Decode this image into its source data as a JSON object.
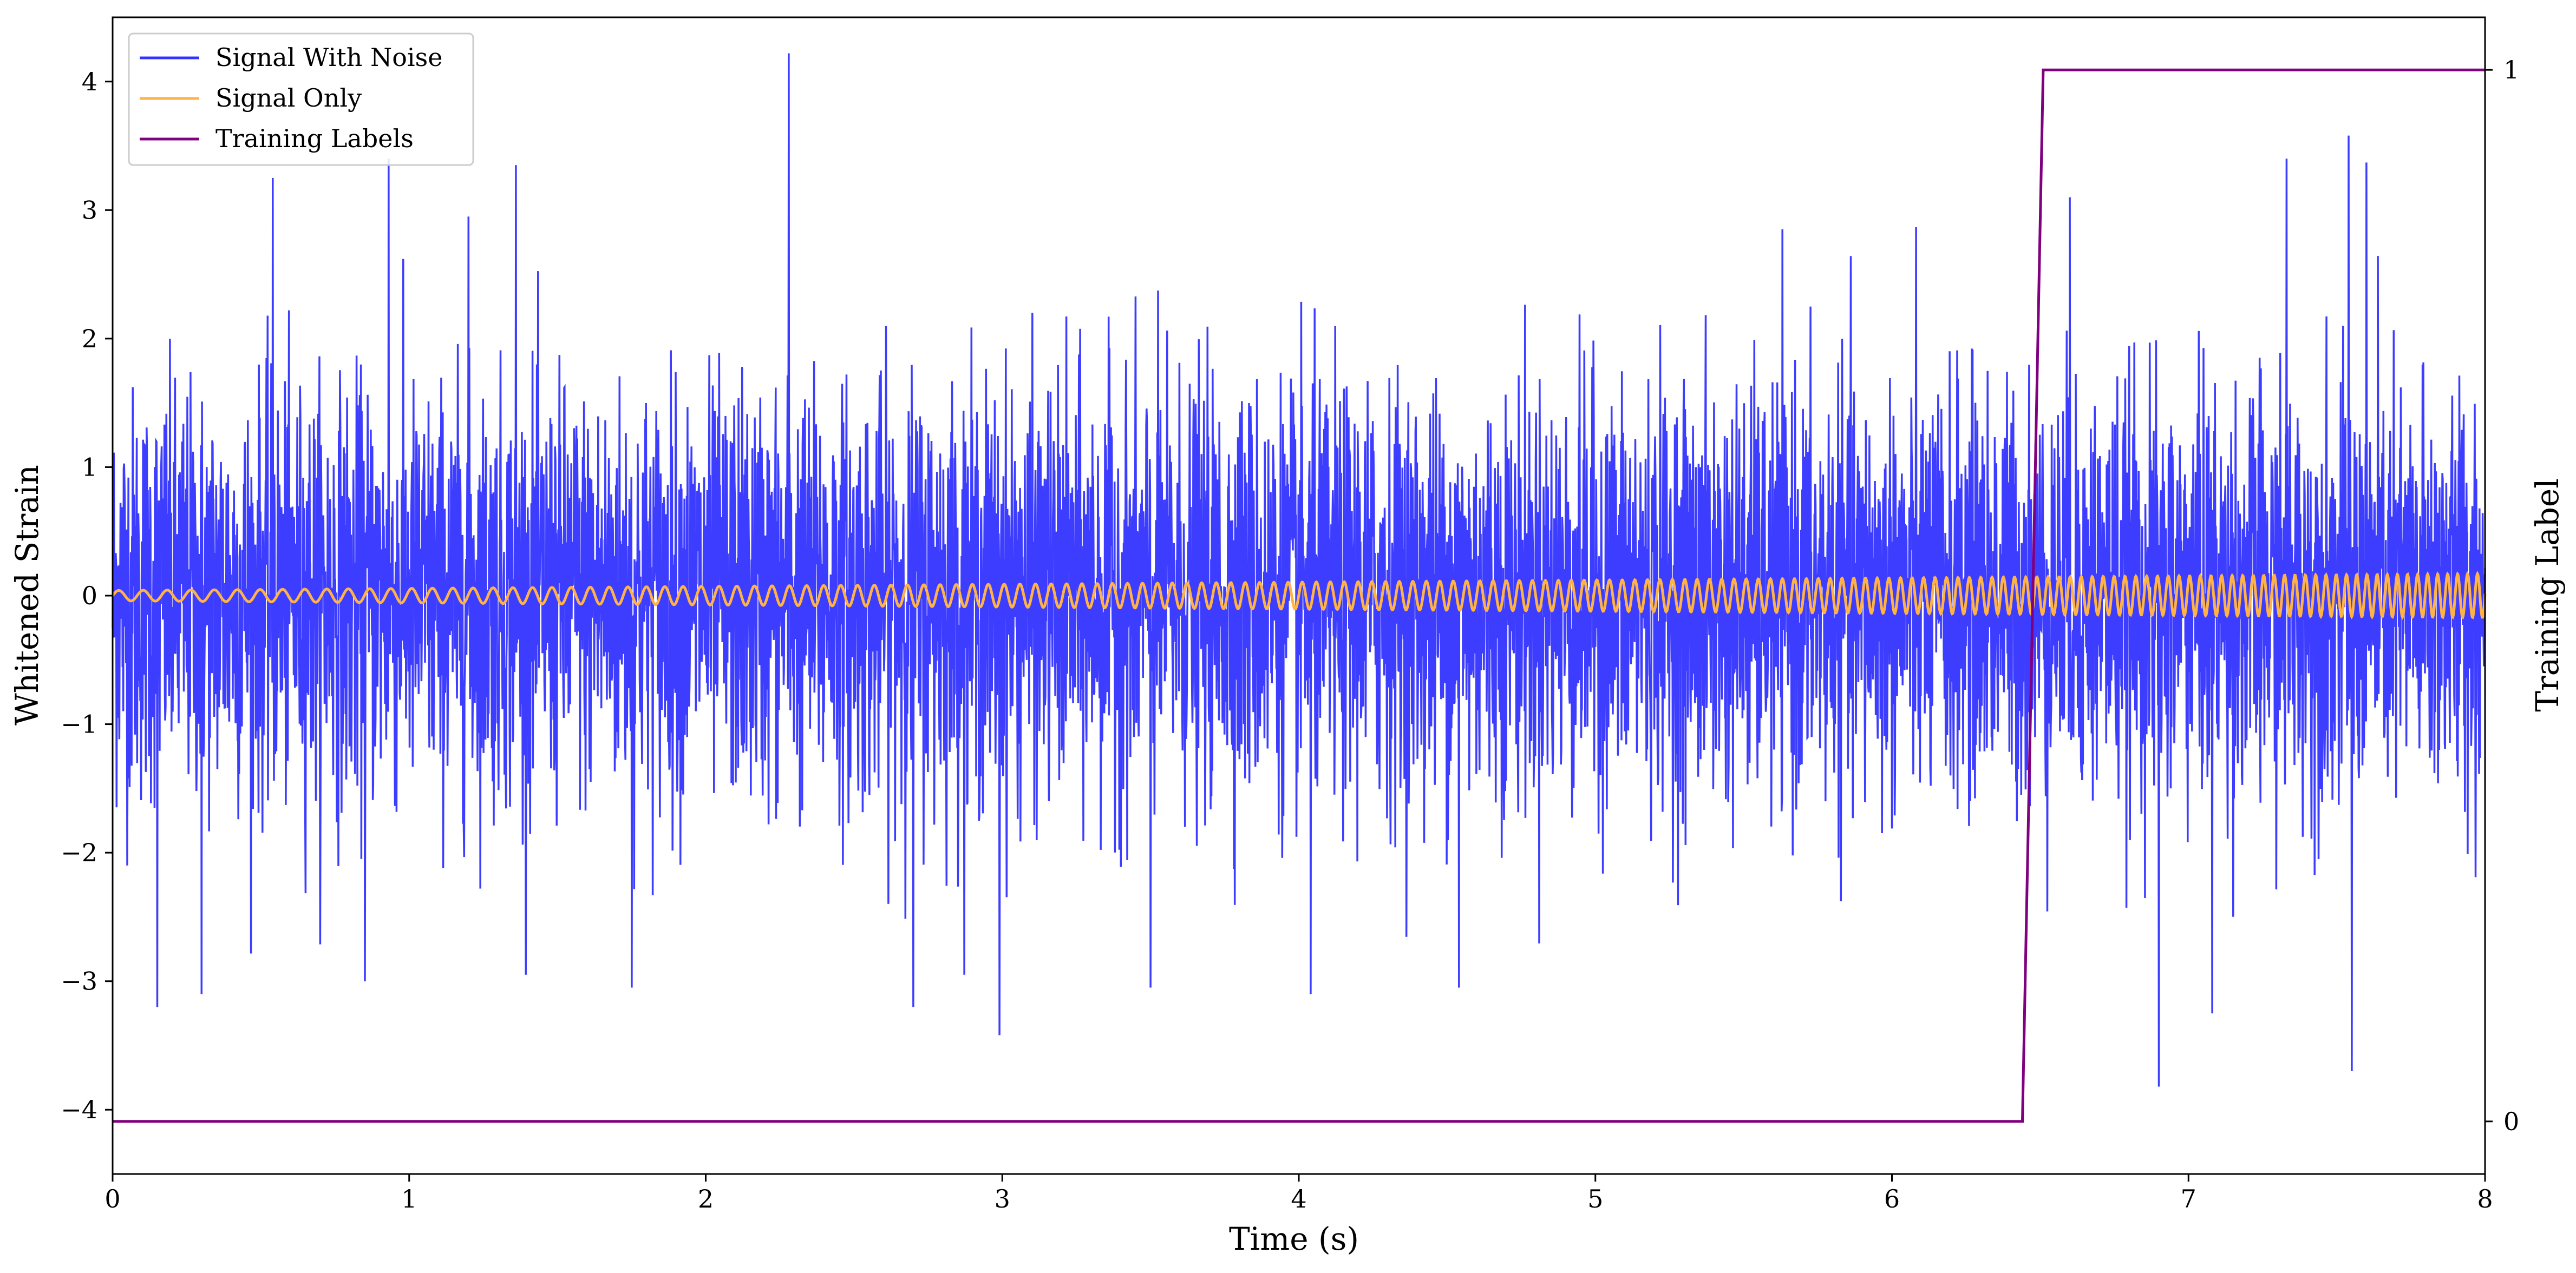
{
  "chart_data": {
    "type": "line",
    "title": "",
    "xlabel": "Time (s)",
    "ylabel": "Whitened Strain",
    "y2label": "Training Label",
    "xlim": [
      0,
      8
    ],
    "ylim": [
      -4.5,
      4.5
    ],
    "y2lim": [
      -0.05,
      1.05
    ],
    "xticks": [
      0,
      1,
      2,
      3,
      4,
      5,
      6,
      7,
      8
    ],
    "xtick_labels": [
      "0",
      "1",
      "2",
      "3",
      "4",
      "5",
      "6",
      "7",
      "8"
    ],
    "yticks": [
      -4,
      -3,
      -2,
      -1,
      0,
      1,
      2,
      3,
      4
    ],
    "ytick_labels": [
      "−4",
      "−3",
      "−2",
      "−1",
      "0",
      "1",
      "2",
      "3",
      "4"
    ],
    "y2ticks": [
      0,
      1
    ],
    "y2tick_labels": [
      "0",
      "1"
    ],
    "grid": false,
    "legend_position": "top-left",
    "series": [
      {
        "name": "Signal With Noise",
        "color": "#3333ff",
        "kind": "noise",
        "axis": "left",
        "spikes": [
          {
            "x": 0.15,
            "y": -3.2
          },
          {
            "x": 0.3,
            "y": -3.1
          },
          {
            "x": 0.54,
            "y": 3.25
          },
          {
            "x": 0.93,
            "y": 3.4
          },
          {
            "x": 0.85,
            "y": -3.0
          },
          {
            "x": 1.2,
            "y": 2.95
          },
          {
            "x": 1.36,
            "y": 3.35
          },
          {
            "x": 1.75,
            "y": -3.05
          },
          {
            "x": 2.28,
            "y": 4.22
          },
          {
            "x": 2.7,
            "y": -3.2
          },
          {
            "x": 2.99,
            "y": -3.42
          },
          {
            "x": 3.5,
            "y": -3.05
          },
          {
            "x": 4.04,
            "y": -3.1
          },
          {
            "x": 4.54,
            "y": -3.05
          },
          {
            "x": 6.9,
            "y": -3.82
          },
          {
            "x": 7.08,
            "y": -3.25
          },
          {
            "x": 7.33,
            "y": 3.4
          },
          {
            "x": 7.54,
            "y": 3.58
          },
          {
            "x": 7.55,
            "y": -3.7
          },
          {
            "x": 7.6,
            "y": 3.37
          },
          {
            "x": 6.6,
            "y": 3.1
          }
        ]
      },
      {
        "name": "Signal Only",
        "color": "#ffb347",
        "kind": "chirp",
        "axis": "left",
        "amplitude_start": 0.04,
        "amplitude_end": 0.17,
        "cycles_per_second_start": 12,
        "cycles_per_second_end": 30
      },
      {
        "name": "Training Labels",
        "color": "#800080",
        "kind": "step",
        "axis": "right",
        "x": [
          0,
          6.44,
          6.51,
          8
        ],
        "y": [
          0,
          0,
          1,
          1
        ]
      }
    ]
  }
}
